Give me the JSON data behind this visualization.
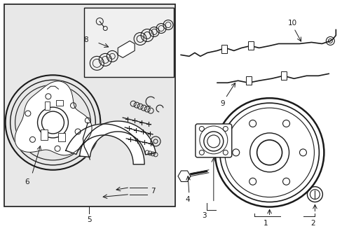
{
  "bg": "#ffffff",
  "box_bg": "#e8e8e8",
  "inset_bg": "#f0f0f0",
  "lc": "#1a1a1a",
  "fig_w": 4.89,
  "fig_h": 3.6,
  "dpi": 100
}
